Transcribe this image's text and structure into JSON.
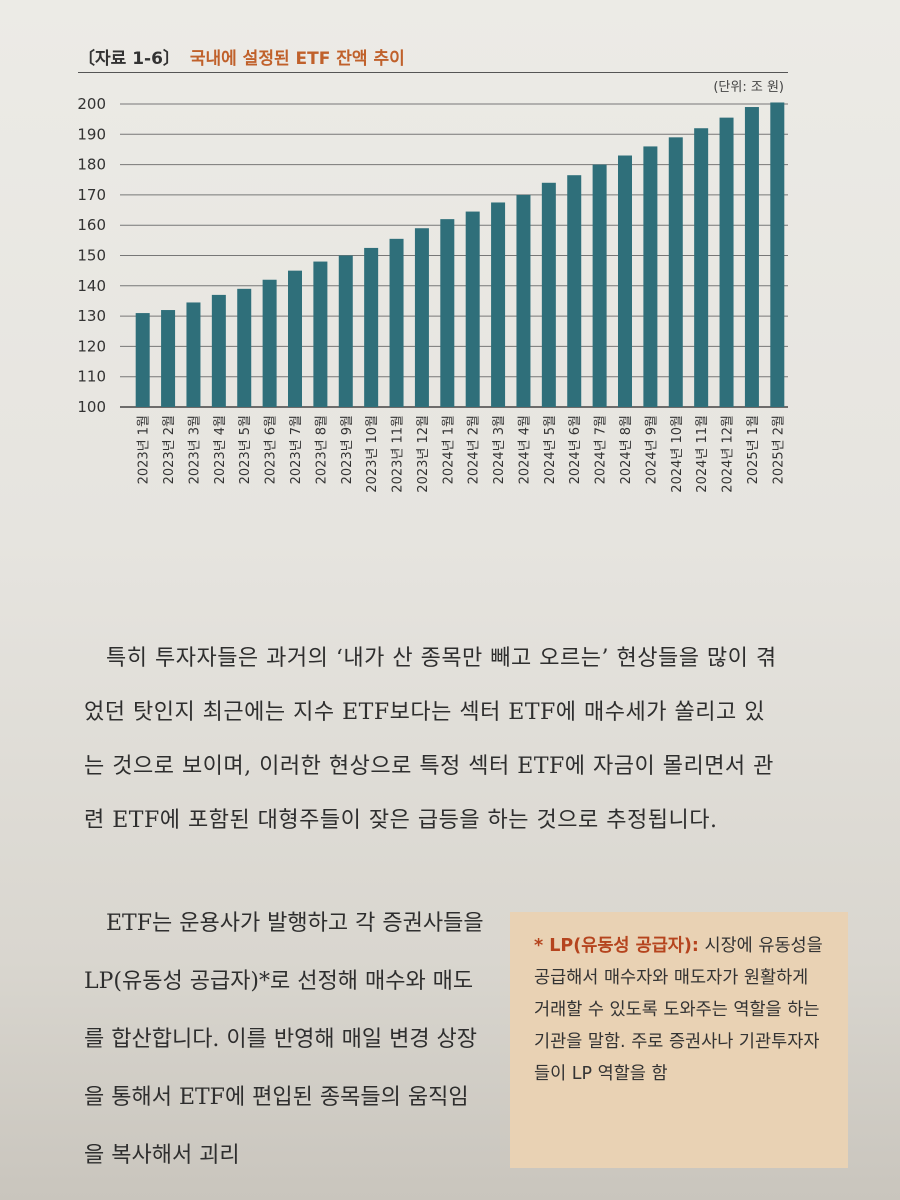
{
  "figure": {
    "label": "〔자료 1-6〕",
    "title": "국내에 설정된 ETF 잔액 추이",
    "unit": "(단위: 조 원)"
  },
  "colors": {
    "bar": "#2f6f7a",
    "title_accent": "#c0612b",
    "box_bg": "#e9d2b4"
  },
  "chart_data": {
    "type": "bar",
    "categories": [
      "2023년 1월",
      "2023년 2월",
      "2023년 3월",
      "2023년 4월",
      "2023년 5월",
      "2023년 6월",
      "2023년 7월",
      "2023년 8월",
      "2023년 9월",
      "2023년 10월",
      "2023년 11월",
      "2023년 12월",
      "2024년 1월",
      "2024년 2월",
      "2024년 3월",
      "2024년 4월",
      "2024년 5월",
      "2024년 6월",
      "2024년 7월",
      "2024년 8월",
      "2024년 9월",
      "2024년 10월",
      "2024년 11월",
      "2024년 12월",
      "2025년 1월",
      "2025년 2월"
    ],
    "values": [
      131,
      132,
      134.5,
      137,
      139,
      142,
      145,
      148,
      150,
      152.5,
      155.5,
      159,
      162,
      164.5,
      167.5,
      170,
      174,
      176.5,
      180,
      183,
      186,
      189,
      192,
      195.5,
      199,
      200.5
    ],
    "title": "국내에 설정된 ETF 잔액 추이",
    "xlabel": "",
    "ylabel": "",
    "ylim": [
      100,
      200
    ],
    "yticks": [
      100,
      110,
      120,
      130,
      140,
      150,
      160,
      170,
      180,
      190,
      200
    ],
    "grid": true
  },
  "body": {
    "paragraph": "특히 투자자들은 과거의 ‘내가 산 종목만 빼고 오르는’ 현상들을 많이 겪었던 탓인지 최근에는 지수 ETF보다는 섹터 ETF에 매수세가 쏠리고 있는 것으로 보이며, 이러한 현상으로 특정 섹터 ETF에 자금이 몰리면서 관련 ETF에 포함된 대형주들이 잦은 급등을 하는 것으로 추정됩니다.",
    "left_paragraph": "ETF는 운용사가 발행하고 각 증권사들을 LP(유동성 공급자)*로 선정해 매수와 매도를 합산합니다. 이를 반영해 매일 변경 상장을 통해서 ETF에 편입된 종목들의 움직임을 복사해서 괴리"
  },
  "footnote": {
    "head": "* LP(유동성 공급자):",
    "text": " 시장에 유동성을 공급해서 매수자와 매도자가 원활하게 거래할 수 있도록 도와주는 역할을 하는 기관을 말함. 주로 증권사나 기관투자자들이 LP 역할을 함"
  }
}
